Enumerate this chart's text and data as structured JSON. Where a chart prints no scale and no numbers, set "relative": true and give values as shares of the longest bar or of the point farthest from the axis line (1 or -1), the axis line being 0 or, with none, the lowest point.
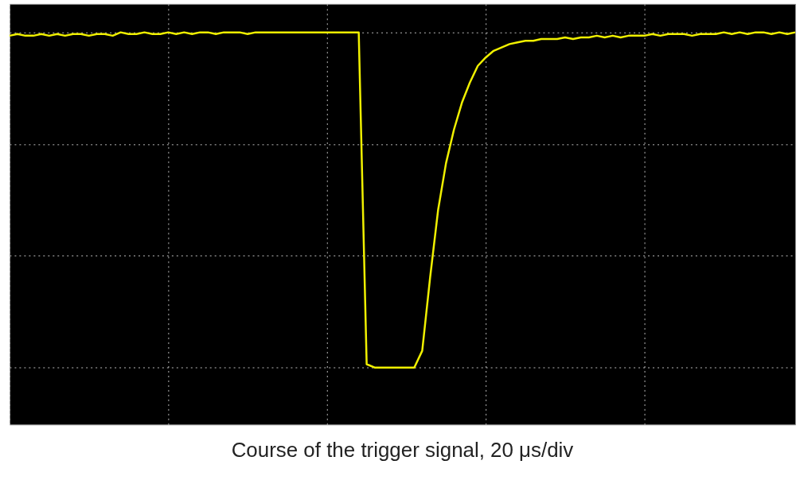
{
  "chart_data": {
    "type": "line",
    "title": "Course of the trigger signal, 20 μs/div",
    "relative": true,
    "grid": true,
    "marker": "none",
    "line_style": "solid",
    "tick_labels": false,
    "categories": [
      null,
      null,
      null,
      null,
      null,
      null,
      null,
      null,
      null,
      null,
      null,
      null,
      null,
      null,
      null,
      null,
      null,
      null,
      null,
      null,
      null,
      null,
      null,
      null,
      null,
      null,
      null,
      null,
      null,
      null,
      null,
      null,
      null,
      null,
      null,
      null,
      null,
      null,
      null,
      null,
      null,
      null,
      null,
      null,
      null,
      null,
      null,
      null,
      null,
      null,
      null,
      null,
      null,
      null,
      null,
      null,
      null,
      null,
      null,
      null,
      null,
      null,
      null,
      null,
      null,
      null,
      null,
      null,
      null,
      null,
      null,
      null,
      null,
      null,
      null,
      null,
      null,
      null,
      null,
      null,
      null,
      null,
      null,
      null,
      null,
      null,
      null,
      null,
      null,
      null,
      null,
      null,
      null,
      null,
      null,
      null,
      null,
      null,
      null,
      null
    ],
    "series": [
      {
        "color": "#f0f000",
        "values": [
          0.99,
          0.995,
          0.99,
          0.99,
          0.995,
          0.99,
          0.995,
          0.99,
          0.995,
          0.995,
          0.99,
          0.995,
          0.995,
          0.99,
          1.0,
          0.995,
          0.995,
          1.0,
          0.995,
          0.995,
          1.0,
          0.995,
          1.0,
          0.995,
          1.0,
          1.0,
          0.995,
          1.0,
          1.0,
          1.0,
          0.995,
          1.0,
          1.0,
          1.0,
          1.0,
          1.0,
          1.0,
          1.0,
          1.0,
          1.0,
          1.0,
          1.0,
          1.0,
          1.0,
          1.0,
          0.01,
          0.0,
          0.0,
          0.0,
          0.0,
          0.0,
          0.0,
          0.05,
          0.27,
          0.47,
          0.61,
          0.71,
          0.79,
          0.85,
          0.9,
          0.925,
          0.945,
          0.955,
          0.965,
          0.97,
          0.975,
          0.975,
          0.98,
          0.98,
          0.98,
          0.985,
          0.98,
          0.985,
          0.985,
          0.99,
          0.985,
          0.99,
          0.985,
          0.99,
          0.99,
          0.99,
          0.995,
          0.99,
          0.995,
          0.995,
          0.995,
          0.99,
          0.995,
          0.995,
          0.995,
          1.0,
          0.995,
          1.0,
          0.995,
          1.0,
          1.0,
          0.995,
          1.0,
          0.995,
          1.0
        ]
      }
    ]
  }
}
